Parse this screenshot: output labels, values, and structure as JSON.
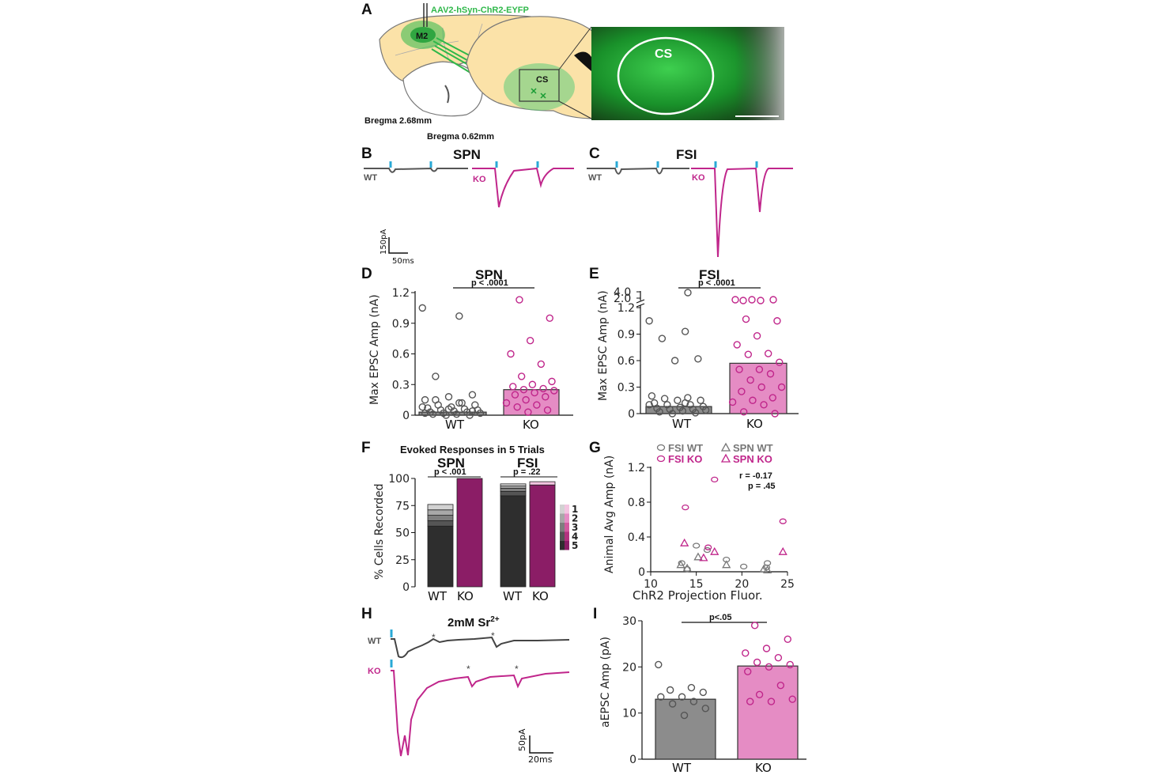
{
  "colors": {
    "wt": "#555555",
    "ko": "#c0268b",
    "ko_bar": "#e58cc4",
    "wt_bar": "#8c8c8c",
    "green": "#2fb84a",
    "cyan": "#29a9d6",
    "dark_ko": "#8b1d66"
  },
  "panelA": {
    "label": "A",
    "virus": "AAV2-hSyn-ChR2-EYFP",
    "region_m2": "M2",
    "region_cs": "CS",
    "bregma1": "Bregma 2.68mm",
    "bregma2": "Bregma 0.62mm",
    "image_label": "CS"
  },
  "panelB": {
    "label": "B",
    "title": "SPN",
    "wt": "WT",
    "ko": "KO"
  },
  "panelC": {
    "label": "C",
    "title": "FSI",
    "wt": "WT",
    "ko": "KO"
  },
  "scaleBC": {
    "y": "150pA",
    "x": "50ms"
  },
  "chart_data": [
    {
      "id": "D",
      "type": "bar",
      "title": "SPN",
      "pvalue": "p < .0001",
      "ylabel": "Max EPSC Amp (nA)",
      "categories": [
        "WT",
        "KO"
      ],
      "values": [
        0.03,
        0.25
      ],
      "ylim": [
        0,
        1.2
      ],
      "yticks": [
        "0",
        "0.3",
        "0.6",
        "0.9",
        "1.2"
      ],
      "points": {
        "WT": [
          1.05,
          0.97,
          0.38,
          0.2,
          0.18,
          0.15,
          0.12,
          0.1,
          0.1,
          0.08,
          0.07,
          0.06,
          0.05,
          0.05,
          0.04,
          0.03,
          0.03,
          0.02,
          0.02,
          0.01,
          0.01,
          0.0,
          0.0,
          0.08,
          0.12,
          0.15,
          0.04,
          0.06,
          0.02
        ],
        "KO": [
          1.13,
          0.95,
          0.73,
          0.6,
          0.5,
          0.38,
          0.33,
          0.3,
          0.28,
          0.26,
          0.25,
          0.24,
          0.22,
          0.2,
          0.18,
          0.15,
          0.12,
          0.1,
          0.08,
          0.05,
          0.03
        ]
      }
    },
    {
      "id": "E",
      "type": "bar",
      "title": "FSI",
      "pvalue": "p < .0001",
      "ylabel": "Max EPSC Amp (nA)",
      "categories": [
        "WT",
        "KO"
      ],
      "values": [
        0.08,
        0.57
      ],
      "ylim": [
        0,
        1.2
      ],
      "yticks": [
        "0",
        "0.3",
        "0.6",
        "0.9",
        "1.2"
      ],
      "broken_ticks": [
        "2.0",
        "4.0"
      ],
      "points": {
        "WT": [
          1.05,
          0.93,
          0.85,
          0.62,
          0.6,
          0.2,
          0.18,
          0.17,
          0.15,
          0.15,
          0.12,
          0.1,
          0.1,
          0.08,
          0.07,
          0.06,
          0.05,
          0.05,
          0.04,
          0.03,
          0.02,
          0.01,
          0.0,
          0.1,
          0.12
        ],
        "KO": [
          1.07,
          1.05,
          0.88,
          0.78,
          0.68,
          0.67,
          0.58,
          0.5,
          0.5,
          0.45,
          0.38,
          0.3,
          0.3,
          0.25,
          0.18,
          0.15,
          0.13,
          0.1,
          0.02,
          0.0
        ]
      }
    },
    {
      "id": "F",
      "type": "bar",
      "title": "Evoked Responses in 5 Trials",
      "groups": [
        "SPN",
        "FSI"
      ],
      "pvalues": [
        "p < .001",
        "p = .22"
      ],
      "ylabel": "% Cells Recorded",
      "categories": [
        "WT",
        "KO",
        "WT",
        "KO"
      ],
      "ylim": [
        0,
        100
      ],
      "yticks": [
        "0",
        "25",
        "50",
        "75",
        "100"
      ],
      "series": [
        {
          "name": "SPN WT",
          "segments": [
            {
              "trials": "5",
              "value": 56
            },
            {
              "trials": "4",
              "value": 5
            },
            {
              "trials": "3",
              "value": 5
            },
            {
              "trials": "2",
              "value": 5
            },
            {
              "trials": "1",
              "value": 5
            }
          ]
        },
        {
          "name": "SPN KO",
          "segments": [
            {
              "trials": "5",
              "value": 100
            }
          ]
        },
        {
          "name": "FSI WT",
          "segments": [
            {
              "trials": "5",
              "value": 84
            },
            {
              "trials": "4",
              "value": 4
            },
            {
              "trials": "3",
              "value": 3
            },
            {
              "trials": "2",
              "value": 2
            },
            {
              "trials": "1",
              "value": 2
            }
          ]
        },
        {
          "name": "FSI KO",
          "segments": [
            {
              "trials": "5",
              "value": 94
            },
            {
              "trials": "1",
              "value": 3
            }
          ]
        }
      ],
      "legend": [
        "1",
        "2",
        "3",
        "4",
        "5"
      ]
    },
    {
      "id": "G",
      "type": "scatter",
      "ylabel": "Animal Avg Amp (nA)",
      "xlabel": "ChR2 Projection Fluor.",
      "xlim": [
        10,
        25
      ],
      "ylim": [
        0,
        1.2
      ],
      "xticks": [
        "10",
        "15",
        "20",
        "25"
      ],
      "yticks": [
        "0",
        "0.4",
        "0.8",
        "1.2"
      ],
      "stats": [
        "r = -0.17",
        "p = .45"
      ],
      "legend": [
        "FSI WT",
        "SPN WT",
        "FSI KO",
        "SPN KO"
      ],
      "series": [
        {
          "name": "FSI WT",
          "points": [
            [
              13.4,
              0.1
            ],
            [
              14,
              0.03
            ],
            [
              15,
              0.3
            ],
            [
              16.2,
              0.25
            ],
            [
              18.3,
              0.14
            ],
            [
              20.2,
              0.06
            ],
            [
              22.8,
              0.1
            ],
            [
              22.7,
              0.05
            ]
          ]
        },
        {
          "name": "SPN WT",
          "points": [
            [
              13.3,
              0.08
            ],
            [
              14,
              0.04
            ],
            [
              15.2,
              0.17
            ],
            [
              18.3,
              0.08
            ],
            [
              22.4,
              0.03
            ],
            [
              22.8,
              0.02
            ]
          ]
        },
        {
          "name": "FSI KO",
          "points": [
            [
              13.8,
              0.74
            ],
            [
              16.3,
              0.28
            ],
            [
              17,
              1.06
            ],
            [
              24.5,
              0.58
            ]
          ]
        },
        {
          "name": "SPN KO",
          "points": [
            [
              13.7,
              0.33
            ],
            [
              15.8,
              0.16
            ],
            [
              17,
              0.23
            ],
            [
              24.5,
              0.23
            ]
          ]
        }
      ]
    },
    {
      "id": "I",
      "type": "bar",
      "pvalue": "p<.05",
      "ylabel": "aEPSC Amp (pA)",
      "categories": [
        "WT",
        "KO"
      ],
      "values": [
        13,
        20.2
      ],
      "ylim": [
        0,
        30
      ],
      "yticks": [
        "0",
        "10",
        "20",
        "30"
      ],
      "points": {
        "WT": [
          20.5,
          15.5,
          15,
          14.5,
          13.5,
          13.5,
          12.5,
          12,
          11,
          9.5
        ],
        "KO": [
          29,
          26,
          24,
          23,
          22,
          21,
          20.5,
          20,
          19,
          16,
          14,
          13,
          12.5,
          12.5
        ]
      }
    }
  ],
  "panelH": {
    "label": "H",
    "title": "2mM Sr",
    "sup": "2+",
    "wt": "WT",
    "ko": "KO",
    "scale_y": "50pA",
    "scale_x": "20ms",
    "star": "*"
  },
  "labels": {
    "D": "D",
    "E": "E",
    "F": "F",
    "G": "G",
    "I": "I"
  }
}
